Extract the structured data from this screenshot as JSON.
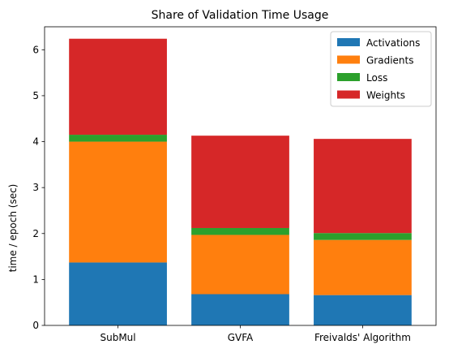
{
  "chart_data": {
    "type": "bar",
    "stacked": true,
    "title": "Share of Validation Time Usage",
    "xlabel": "",
    "ylabel": "time / epoch (sec)",
    "categories": [
      "SubMul",
      "GVFA",
      "Freivalds' Algorithm"
    ],
    "series": [
      {
        "name": "Activations",
        "color": "#1f77b4",
        "values": [
          1.37,
          0.68,
          0.66
        ]
      },
      {
        "name": "Gradients",
        "color": "#ff7f0e",
        "values": [
          2.63,
          1.29,
          1.2
        ]
      },
      {
        "name": "Loss",
        "color": "#2ca02c",
        "values": [
          0.15,
          0.15,
          0.15
        ]
      },
      {
        "name": "Weights",
        "color": "#d62728",
        "values": [
          2.09,
          2.01,
          2.05
        ]
      }
    ],
    "ylim": [
      0,
      6.5
    ],
    "yticks": [
      0,
      1,
      2,
      3,
      4,
      5,
      6
    ],
    "grid": false,
    "legend_position": "top-right"
  }
}
